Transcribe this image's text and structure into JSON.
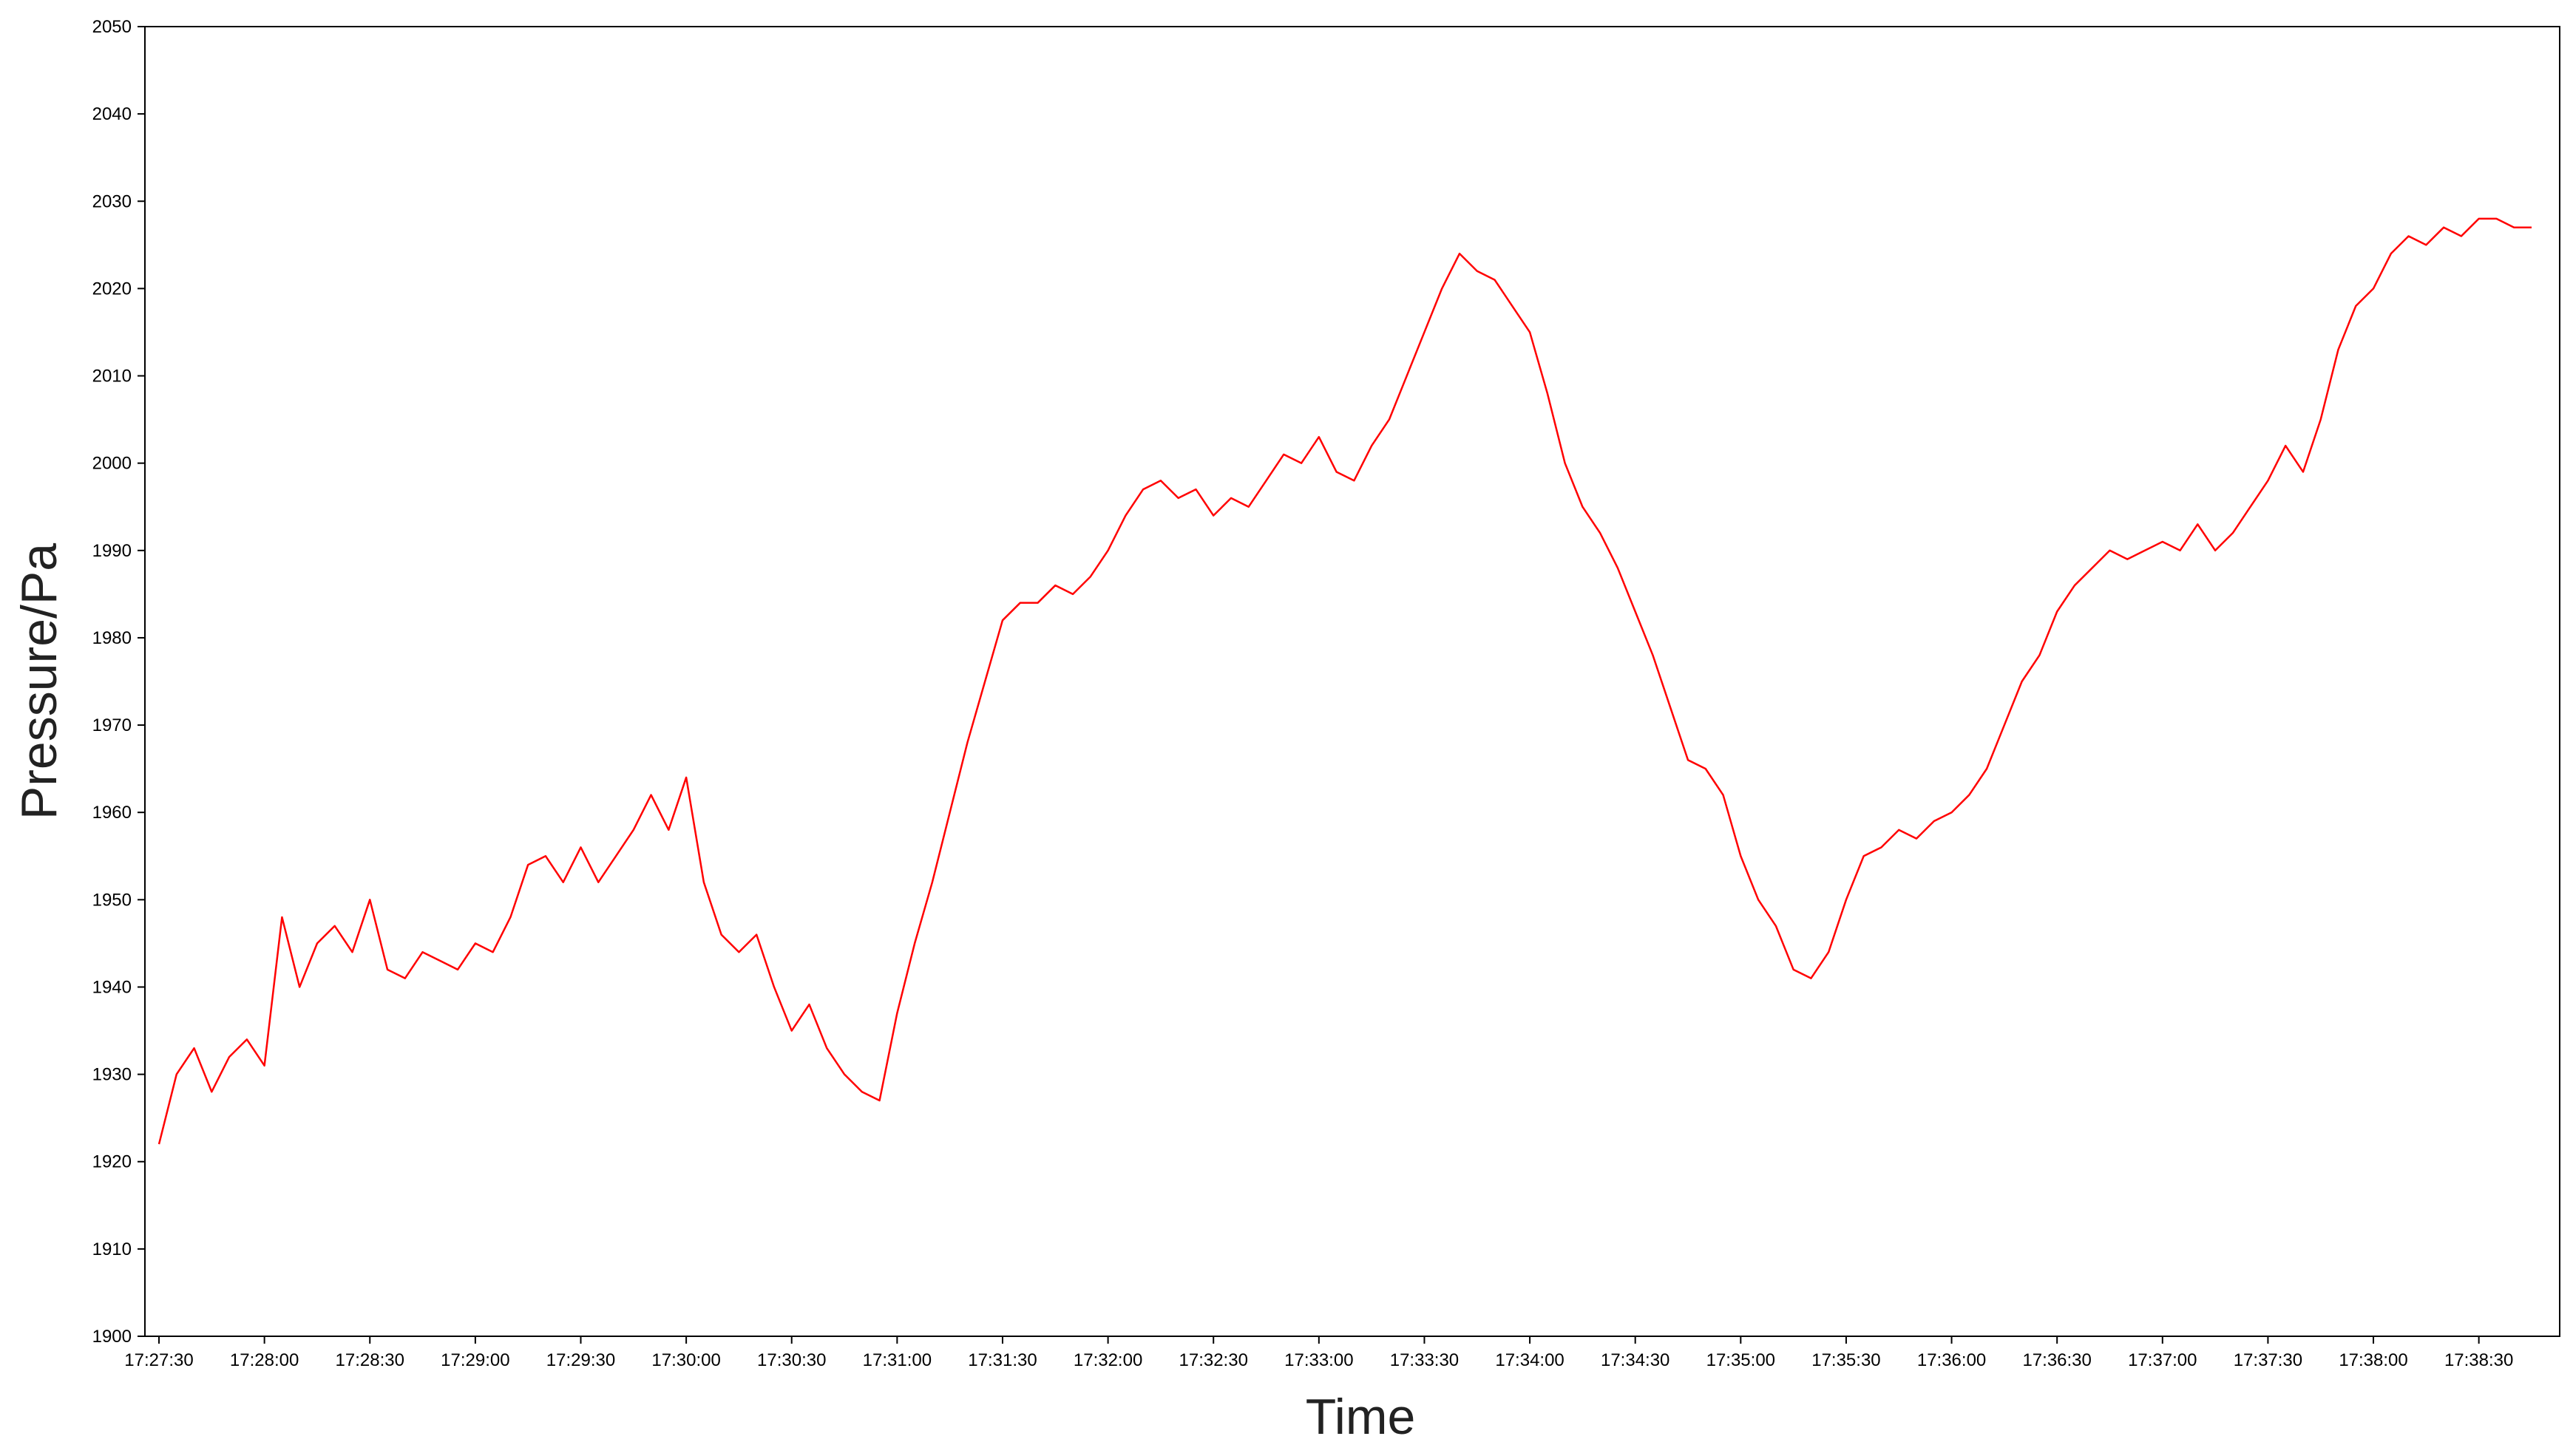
{
  "chart_data": {
    "type": "line",
    "xlabel": "Time",
    "ylabel": "Pressure/Pa",
    "color": "#ff0000",
    "xlim": [
      "17:27:26",
      "17:38:53"
    ],
    "xticks": [
      "17:27:30",
      "17:28:00",
      "17:28:30",
      "17:29:00",
      "17:29:30",
      "17:30:00",
      "17:30:30",
      "17:31:00",
      "17:31:30",
      "17:32:00",
      "17:32:30",
      "17:33:00",
      "17:33:30",
      "17:34:00",
      "17:34:30",
      "17:35:00",
      "17:35:30",
      "17:36:00",
      "17:36:30",
      "17:37:00",
      "17:37:30",
      "17:38:00",
      "17:38:30"
    ],
    "ylim": [
      1900,
      2050
    ],
    "yticks": [
      1900,
      1910,
      1920,
      1930,
      1940,
      1950,
      1960,
      1970,
      1980,
      1990,
      2000,
      2010,
      2020,
      2030,
      2040,
      2050
    ],
    "x": [
      "17:27:30",
      "17:27:35",
      "17:27:40",
      "17:27:45",
      "17:27:50",
      "17:27:55",
      "17:28:00",
      "17:28:05",
      "17:28:10",
      "17:28:15",
      "17:28:20",
      "17:28:25",
      "17:28:30",
      "17:28:35",
      "17:28:40",
      "17:28:45",
      "17:28:50",
      "17:28:55",
      "17:29:00",
      "17:29:05",
      "17:29:10",
      "17:29:15",
      "17:29:20",
      "17:29:25",
      "17:29:30",
      "17:29:35",
      "17:29:40",
      "17:29:45",
      "17:29:50",
      "17:29:55",
      "17:30:00",
      "17:30:05",
      "17:30:10",
      "17:30:15",
      "17:30:20",
      "17:30:25",
      "17:30:30",
      "17:30:35",
      "17:30:40",
      "17:30:45",
      "17:30:50",
      "17:30:55",
      "17:31:00",
      "17:31:05",
      "17:31:10",
      "17:31:15",
      "17:31:20",
      "17:31:25",
      "17:31:30",
      "17:31:35",
      "17:31:40",
      "17:31:45",
      "17:31:50",
      "17:31:55",
      "17:32:00",
      "17:32:05",
      "17:32:10",
      "17:32:15",
      "17:32:20",
      "17:32:25",
      "17:32:30",
      "17:32:35",
      "17:32:40",
      "17:32:45",
      "17:32:50",
      "17:32:55",
      "17:33:00",
      "17:33:05",
      "17:33:10",
      "17:33:15",
      "17:33:20",
      "17:33:25",
      "17:33:30",
      "17:33:35",
      "17:33:40",
      "17:33:45",
      "17:33:50",
      "17:33:55",
      "17:34:00",
      "17:34:05",
      "17:34:10",
      "17:34:15",
      "17:34:20",
      "17:34:25",
      "17:34:30",
      "17:34:35",
      "17:34:40",
      "17:34:45",
      "17:34:50",
      "17:34:55",
      "17:35:00",
      "17:35:05",
      "17:35:10",
      "17:35:15",
      "17:35:20",
      "17:35:25",
      "17:35:30",
      "17:35:35",
      "17:35:40",
      "17:35:45",
      "17:35:50",
      "17:35:55",
      "17:36:00",
      "17:36:05",
      "17:36:10",
      "17:36:15",
      "17:36:20",
      "17:36:25",
      "17:36:30",
      "17:36:35",
      "17:36:40",
      "17:36:45",
      "17:36:50",
      "17:36:55",
      "17:37:00",
      "17:37:05",
      "17:37:10",
      "17:37:15",
      "17:37:20",
      "17:37:25",
      "17:37:30",
      "17:37:35",
      "17:37:40",
      "17:37:45",
      "17:37:50",
      "17:37:55",
      "17:38:00",
      "17:38:05",
      "17:38:10",
      "17:38:15",
      "17:38:20",
      "17:38:25",
      "17:38:30",
      "17:38:35",
      "17:38:40",
      "17:38:45"
    ],
    "values": [
      1922,
      1930,
      1933,
      1928,
      1932,
      1934,
      1931,
      1948,
      1940,
      1945,
      1947,
      1944,
      1950,
      1942,
      1941,
      1944,
      1943,
      1942,
      1945,
      1944,
      1948,
      1954,
      1955,
      1952,
      1956,
      1952,
      1955,
      1958,
      1962,
      1958,
      1964,
      1952,
      1946,
      1944,
      1946,
      1940,
      1935,
      1938,
      1933,
      1930,
      1928,
      1927,
      1937,
      1945,
      1952,
      1960,
      1968,
      1975,
      1982,
      1984,
      1984,
      1986,
      1985,
      1987,
      1990,
      1994,
      1997,
      1998,
      1996,
      1997,
      1994,
      1996,
      1995,
      1998,
      2001,
      2000,
      2003,
      1999,
      1998,
      2002,
      2005,
      2010,
      2015,
      2020,
      2024,
      2022,
      2021,
      2018,
      2015,
      2008,
      2000,
      1995,
      1992,
      1988,
      1983,
      1978,
      1972,
      1966,
      1965,
      1962,
      1955,
      1950,
      1947,
      1942,
      1941,
      1944,
      1950,
      1955,
      1956,
      1958,
      1957,
      1959,
      1960,
      1962,
      1965,
      1970,
      1975,
      1978,
      1983,
      1986,
      1988,
      1990,
      1989,
      1990,
      1991,
      1990,
      1993,
      1990,
      1992,
      1995,
      1998,
      2002,
      1999,
      2005,
      2013,
      2018,
      2020,
      2024,
      2026,
      2025,
      2027,
      2026,
      2028,
      2028,
      2027,
      2027
    ]
  }
}
